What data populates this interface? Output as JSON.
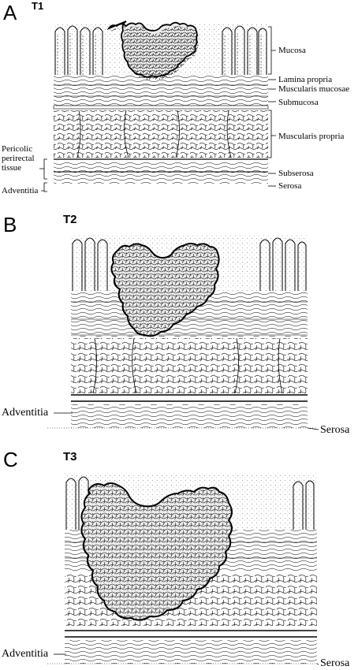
{
  "panels": [
    {
      "letter": "A",
      "stage": "T1",
      "labels": {
        "mucosa": "Mucosa",
        "lamina_propria": "Lamina propria",
        "muscularis_mucosae": "Muscularis mucosae",
        "submucosa": "Submucosa",
        "muscularis_propria": "Muscularis propria",
        "subserosa": "Subserosa",
        "serosa": "Serosa",
        "pericolic_1": "Pericolic",
        "pericolic_2": "perirectal",
        "pericolic_3": "tissue",
        "adventitia": "Adventitia"
      }
    },
    {
      "letter": "B",
      "stage": "T2",
      "labels": {
        "adventitia": "Adventitia",
        "serosa": "Serosa"
      }
    },
    {
      "letter": "C",
      "stage": "T3",
      "labels": {
        "adventitia": "Adventitia",
        "serosa": "Serosa"
      }
    }
  ],
  "colors": {
    "ink": "#000000",
    "paper": "#ffffff",
    "tumor_fill": "#ededed"
  }
}
